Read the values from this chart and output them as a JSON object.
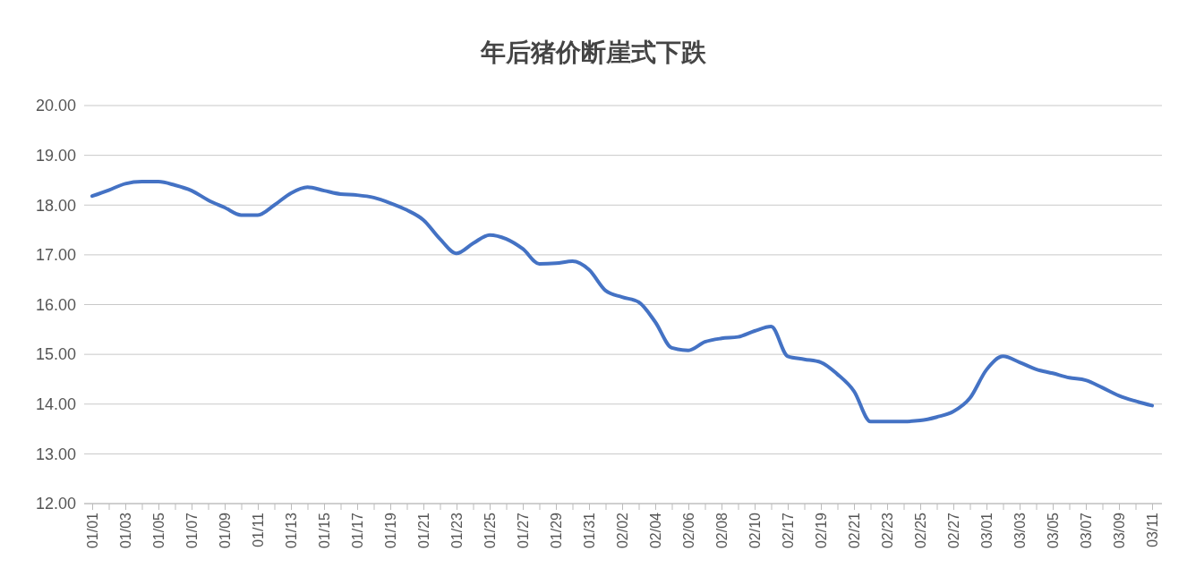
{
  "chart_data": {
    "type": "line",
    "title": "年后猪价断崖式下跌",
    "categories": [
      "01/01",
      null,
      "01/03",
      null,
      "01/05",
      null,
      "01/07",
      null,
      "01/09",
      null,
      "01/11",
      null,
      "01/13",
      null,
      "01/15",
      null,
      "01/17",
      null,
      "01/19",
      null,
      "01/21",
      null,
      "01/23",
      null,
      "01/25",
      null,
      "01/27",
      null,
      "01/29",
      null,
      "01/31",
      null,
      "02/02",
      null,
      "02/04",
      null,
      "02/06",
      null,
      "02/08",
      null,
      "02/10",
      null,
      "02/17",
      null,
      "02/19",
      null,
      "02/21",
      null,
      "02/23",
      null,
      "02/25",
      null,
      "02/27",
      null,
      "03/01",
      null,
      "03/03",
      null,
      "03/05",
      null,
      "03/07",
      null,
      "03/09",
      null,
      "03/11"
    ],
    "series": [
      {
        "color": "#4472c4",
        "values": [
          18.18,
          18.3,
          18.43,
          18.47,
          18.47,
          18.4,
          18.29,
          18.1,
          17.95,
          17.8,
          17.8,
          18.0,
          18.24,
          18.36,
          18.29,
          18.22,
          18.2,
          18.15,
          18.04,
          17.9,
          17.7,
          17.32,
          17.03,
          17.23,
          17.4,
          17.32,
          17.12,
          16.82,
          16.83,
          16.87,
          16.7,
          16.28,
          16.15,
          16.05,
          15.65,
          15.13,
          15.08,
          15.25,
          15.32,
          15.35,
          15.47,
          15.56,
          14.96,
          14.9,
          14.84,
          14.6,
          14.26,
          13.65,
          13.65,
          13.65,
          13.67,
          13.74,
          13.85,
          14.12,
          14.69,
          14.96,
          14.84,
          14.7,
          14.62,
          14.53,
          14.48,
          14.33,
          14.17,
          14.06,
          13.97
        ]
      }
    ],
    "ylim": [
      12,
      20
    ],
    "yticks": [
      {
        "value": 12,
        "label": "12.00"
      },
      {
        "value": 13,
        "label": "13.00"
      },
      {
        "value": 14,
        "label": "14.00"
      },
      {
        "value": 15,
        "label": "15.00"
      },
      {
        "value": 16,
        "label": "16.00"
      },
      {
        "value": 17,
        "label": "17.00"
      },
      {
        "value": 18,
        "label": "18.00"
      },
      {
        "value": 19,
        "label": "19.00"
      },
      {
        "value": 20,
        "label": "20.00"
      }
    ],
    "grid": "y",
    "marker": "none",
    "line_style": "solid"
  }
}
